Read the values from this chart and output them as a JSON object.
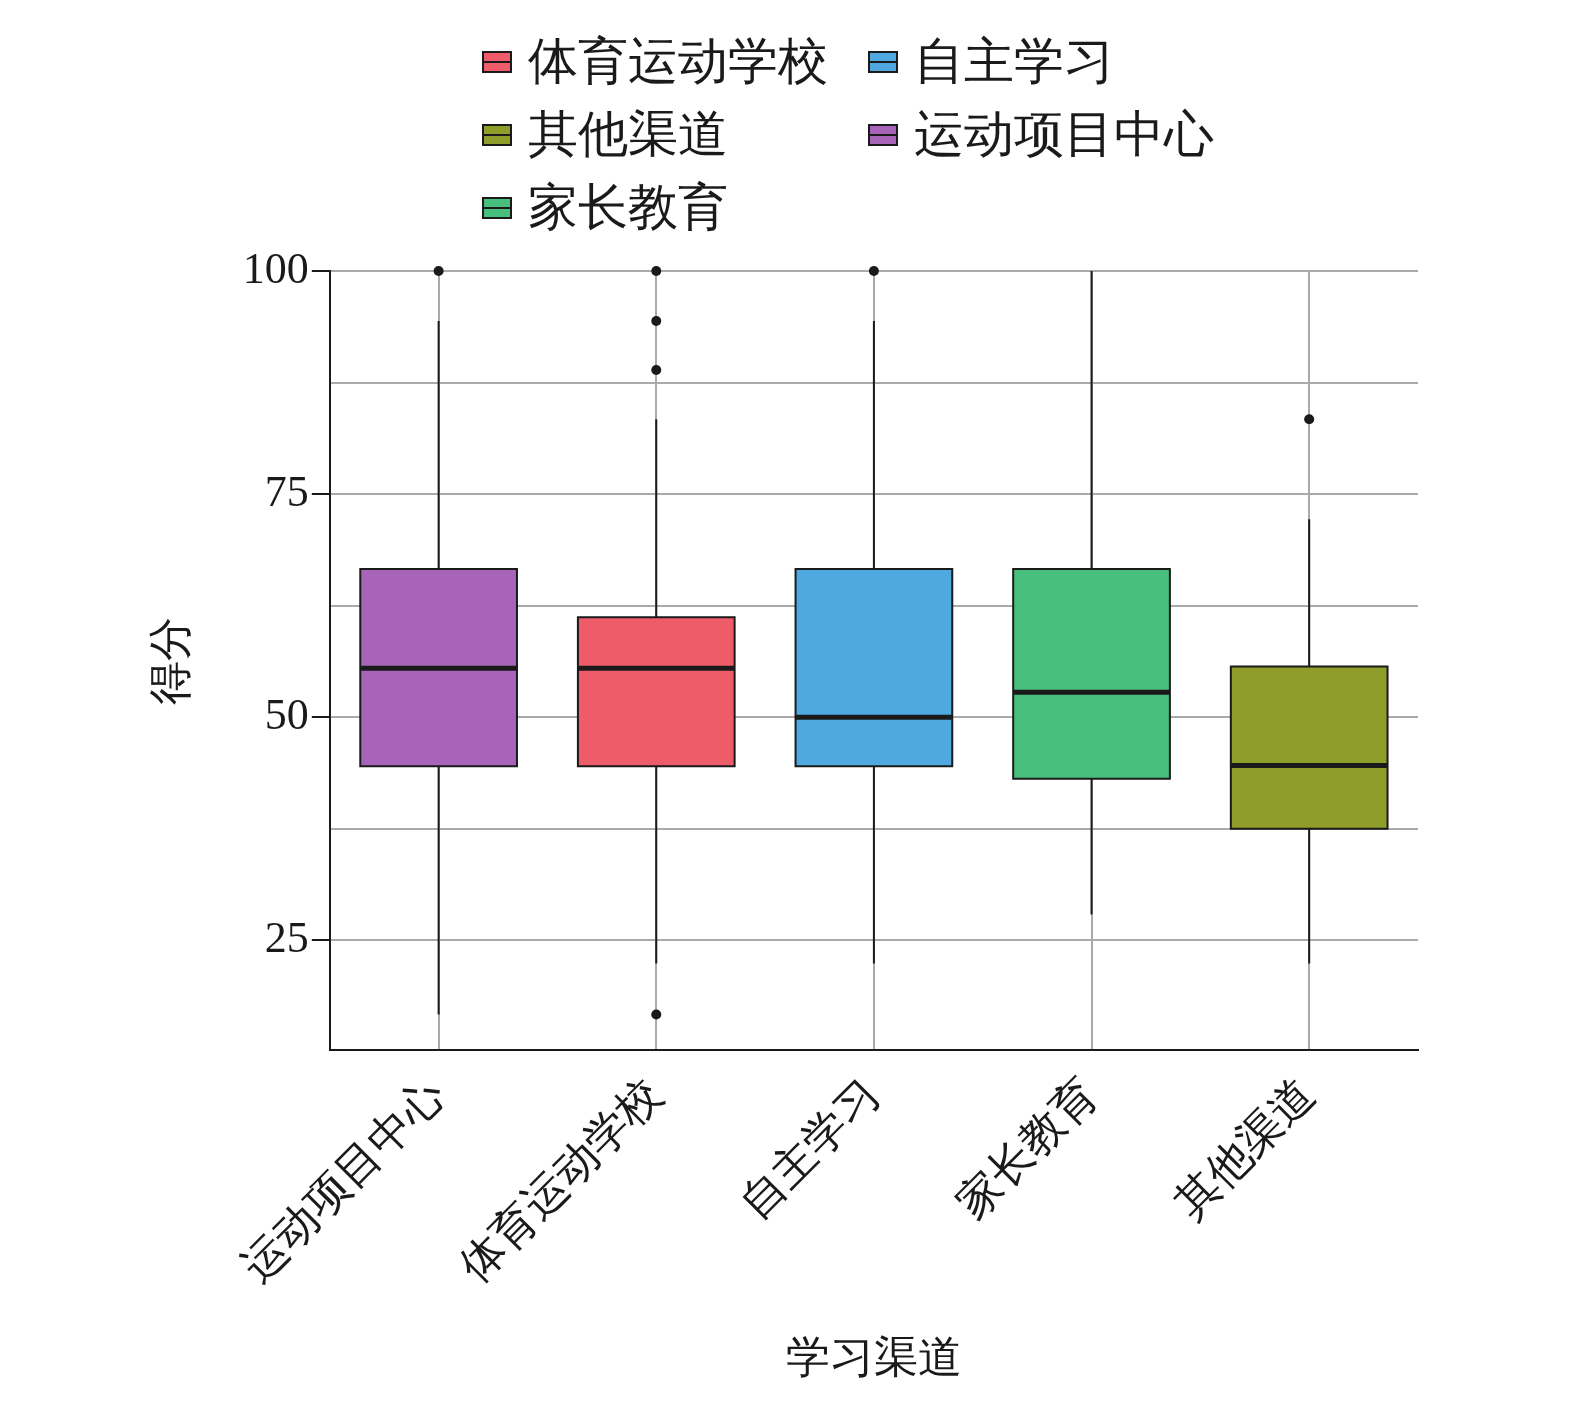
{
  "chart_data": {
    "type": "box",
    "xlabel": "学习渠道",
    "ylabel": "得分",
    "categories": [
      "运动项目中心",
      "体育运动学校",
      "自主学习",
      "家长教育",
      "其他渠道"
    ],
    "series": [
      {
        "name": "体育运动学校",
        "color": "#ee5c6a",
        "boxes": [
          null,
          {
            "low": 22.4,
            "q1": 44.5,
            "median": 55.5,
            "q3": 61.2,
            "high": 83.4,
            "outliers": [
              100,
              94.4,
              88.9,
              16.7
            ]
          },
          null,
          null,
          null
        ]
      },
      {
        "name": "其他渠道",
        "color": "#8f9e2a",
        "boxes": [
          null,
          null,
          null,
          null,
          {
            "low": 22.4,
            "q1": 37.5,
            "median": 44.6,
            "q3": 55.7,
            "high": 72.2,
            "outliers": [
              83.4
            ]
          }
        ]
      },
      {
        "name": "家长教育",
        "color": "#48bf7d",
        "boxes": [
          null,
          null,
          null,
          {
            "low": 27.9,
            "q1": 43.1,
            "median": 52.8,
            "q3": 66.6,
            "high": 100
          },
          null
        ]
      },
      {
        "name": "自主学习",
        "color": "#4fa9e0",
        "boxes": [
          null,
          null,
          {
            "low": 22.4,
            "q1": 44.5,
            "median": 50,
            "q3": 66.6,
            "high": 94.4,
            "outliers": [
              100
            ]
          },
          null,
          null
        ]
      },
      {
        "name": "运动项目中心",
        "color": "#a864b8",
        "boxes": [
          {
            "low": 16.7,
            "q1": 44.5,
            "median": 55.5,
            "q3": 66.6,
            "high": 94.4,
            "outliers": [
              100
            ]
          },
          null,
          null,
          null,
          null
        ]
      }
    ],
    "ylim": [
      12.7,
      100
    ],
    "yticks": [
      25,
      {
        "value": 37.5,
        "label": null
      },
      50,
      {
        "value": 62.5,
        "label": null
      },
      75,
      {
        "value": 87.5,
        "label": null
      },
      100
    ],
    "grid": true,
    "legend": "top"
  }
}
